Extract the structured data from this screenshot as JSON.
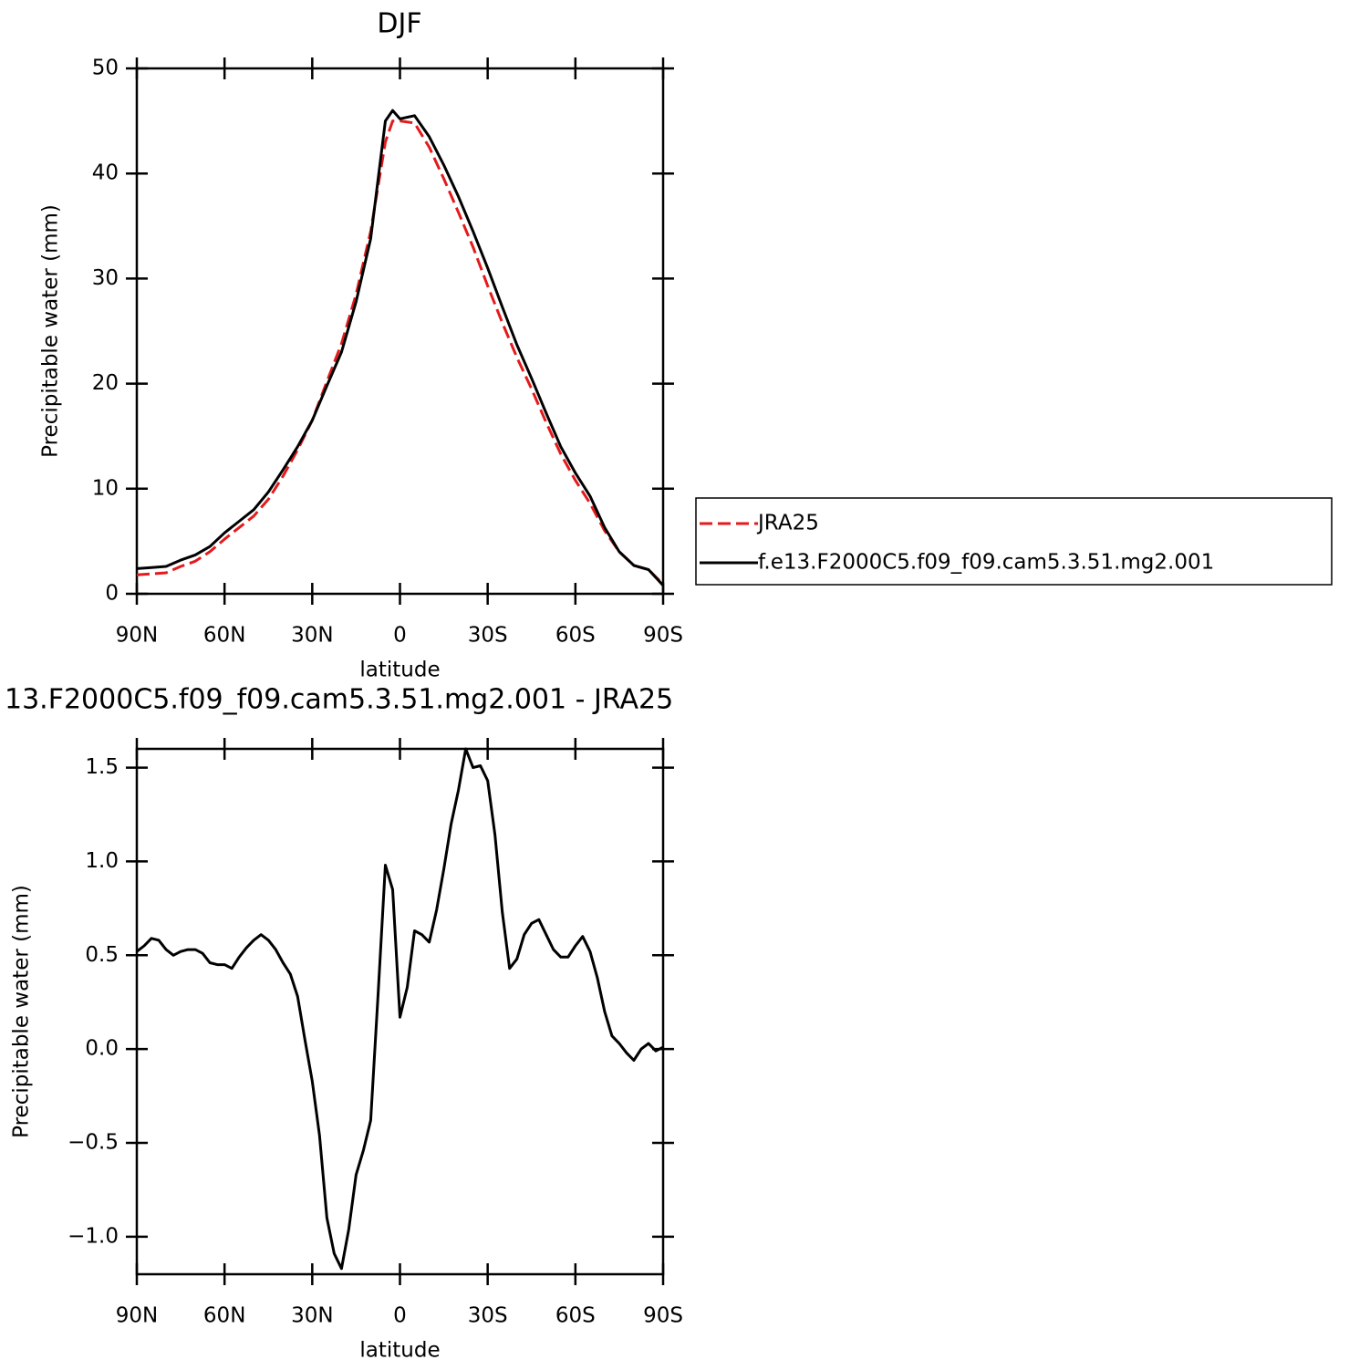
{
  "chart_data": [
    {
      "type": "line",
      "title": "DJF",
      "x_label": "latitude",
      "y_label": "Precipitable water (mm)",
      "x": [
        90,
        85,
        80,
        75,
        70,
        65,
        60,
        55,
        50,
        45,
        40,
        35,
        30,
        25,
        20,
        15,
        10,
        5,
        2.5,
        0,
        -5,
        -10,
        -15,
        -20,
        -25,
        -30,
        -35,
        -40,
        -45,
        -50,
        -55,
        -60,
        -65,
        -70,
        -75,
        -80,
        -85,
        -90
      ],
      "series": [
        {
          "name": "JRA25",
          "color": "#e41a1c",
          "dash": true,
          "values": [
            1.8,
            1.9,
            2.0,
            2.6,
            3.1,
            4.0,
            5.2,
            6.3,
            7.4,
            9.0,
            11.2,
            13.7,
            16.5,
            20.2,
            23.8,
            28.5,
            34.5,
            43.0,
            45.0,
            45.0,
            44.8,
            42.5,
            39.5,
            36.3,
            33.0,
            29.3,
            25.8,
            22.5,
            19.5,
            16.3,
            13.3,
            10.8,
            8.6,
            6.0,
            4.0,
            2.7,
            2.3,
            0.9
          ]
        },
        {
          "name": "f.e13.F2000C5.f09_f09.cam5.3.51.mg2.001",
          "color": "#000000",
          "dash": false,
          "values": [
            2.4,
            2.5,
            2.6,
            3.2,
            3.7,
            4.5,
            5.8,
            6.9,
            8.0,
            9.7,
            11.8,
            14.0,
            16.5,
            19.8,
            23.0,
            27.8,
            33.8,
            45.0,
            46.0,
            45.2,
            45.5,
            43.5,
            40.8,
            37.8,
            34.5,
            31.0,
            27.3,
            23.7,
            20.5,
            17.2,
            14.0,
            11.5,
            9.3,
            6.3,
            4.0,
            2.7,
            2.3,
            0.8
          ]
        }
      ],
      "xlim": [
        90,
        -90
      ],
      "xticks": [
        {
          "value": 90,
          "label": "90N"
        },
        {
          "value": 60,
          "label": "60N"
        },
        {
          "value": 30,
          "label": "30N"
        },
        0,
        {
          "value": -30,
          "label": "30S"
        },
        {
          "value": -60,
          "label": "60S"
        },
        {
          "value": -90,
          "label": "90S"
        }
      ],
      "ylim": [
        0,
        50
      ],
      "yticks": [
        0,
        10,
        20,
        30,
        40,
        50
      ],
      "legend": "right"
    },
    {
      "type": "line",
      "title": "13.F2000C5.f09_f09.cam5.3.51.mg2.001 - JRA25",
      "x_label": "latitude",
      "y_label": "Precipitable water (mm)",
      "x": [
        90,
        87.5,
        85,
        82.5,
        80,
        77.5,
        75,
        72.5,
        70,
        67.5,
        65,
        62.5,
        60,
        57.5,
        55,
        52.5,
        50,
        47.5,
        45,
        42.5,
        40,
        37.5,
        35,
        32.5,
        30,
        27.5,
        25,
        22.5,
        20,
        17.5,
        15,
        12.5,
        10,
        7.5,
        5,
        2.5,
        0,
        -2.5,
        -5,
        -7.5,
        -10,
        -12.5,
        -15,
        -17.5,
        -20,
        -22.5,
        -25,
        -27.5,
        -30,
        -32.5,
        -35,
        -37.5,
        -40,
        -42.5,
        -45,
        -47.5,
        -50,
        -52.5,
        -55,
        -57.5,
        -60,
        -62.5,
        -65,
        -67.5,
        -70,
        -72.5,
        -75,
        -77.5,
        -80,
        -82.5,
        -85,
        -87.5,
        -90
      ],
      "series": [
        {
          "name": "f.e13.F2000C5.f09_f09.cam5.3.51.mg2.001 - JRA25",
          "color": "#000000",
          "dash": false,
          "values": [
            0.52,
            0.55,
            0.59,
            0.58,
            0.53,
            0.5,
            0.52,
            0.53,
            0.53,
            0.51,
            0.46,
            0.45,
            0.45,
            0.43,
            0.49,
            0.54,
            0.58,
            0.61,
            0.58,
            0.53,
            0.46,
            0.4,
            0.28,
            0.05,
            -0.17,
            -0.46,
            -0.9,
            -1.09,
            -1.17,
            -0.96,
            -0.67,
            -0.54,
            -0.38,
            0.29,
            0.98,
            0.85,
            0.17,
            0.33,
            0.63,
            0.61,
            0.57,
            0.74,
            0.96,
            1.2,
            1.38,
            1.6,
            1.5,
            1.51,
            1.43,
            1.14,
            0.73,
            0.43,
            0.48,
            0.61,
            0.67,
            0.69,
            0.61,
            0.53,
            0.49,
            0.49,
            0.55,
            0.6,
            0.52,
            0.38,
            0.2,
            0.07,
            0.03,
            -0.02,
            -0.06,
            0.0,
            0.03,
            -0.01,
            0.01
          ]
        }
      ],
      "xlim": [
        90,
        -90
      ],
      "xticks": [
        {
          "value": 90,
          "label": "90N"
        },
        {
          "value": 60,
          "label": "60N"
        },
        {
          "value": 30,
          "label": "30N"
        },
        0,
        {
          "value": -30,
          "label": "30S"
        },
        {
          "value": -60,
          "label": "60S"
        },
        {
          "value": -90,
          "label": "90S"
        }
      ],
      "ylim": [
        -1.2,
        1.6
      ],
      "yticks": [
        {
          "value": -1.0,
          "label": "−1.0"
        },
        {
          "value": -0.5,
          "label": "−0.5"
        },
        {
          "value": 0.0,
          "label": "0.0"
        },
        0.5,
        {
          "value": 1.0,
          "label": "1.0"
        },
        1.5
      ]
    }
  ]
}
